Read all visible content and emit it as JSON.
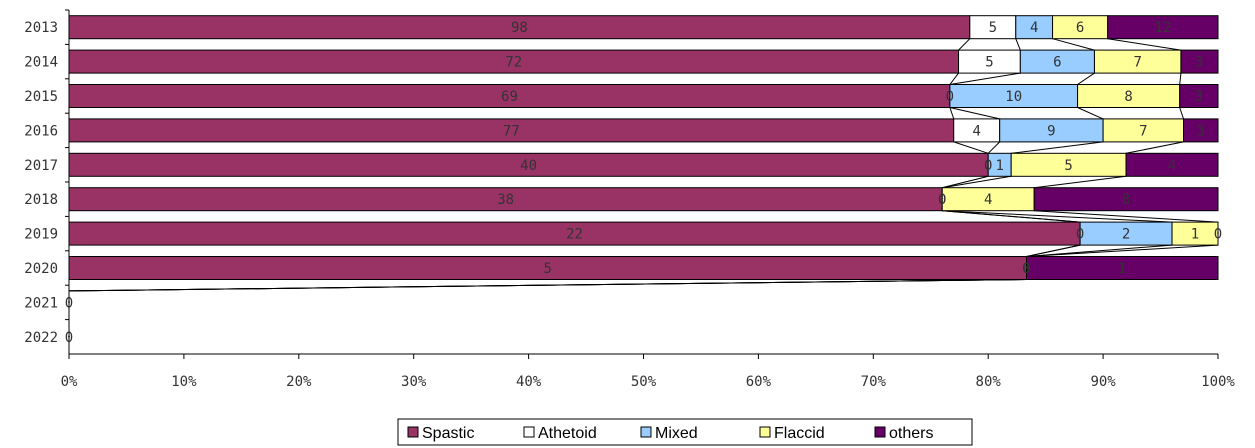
{
  "chart_data": {
    "type": "bar",
    "orientation": "horizontal",
    "stacked": "percent",
    "categories": [
      "2013",
      "2014",
      "2015",
      "2016",
      "2017",
      "2018",
      "2019",
      "2020",
      "2021",
      "2022"
    ],
    "series": [
      {
        "name": "Spastic",
        "color": "#993366",
        "values": [
          98,
          72,
          69,
          77,
          40,
          38,
          22,
          5,
          0,
          0
        ]
      },
      {
        "name": "Athetoid",
        "color": "#FFFFFF",
        "values": [
          5,
          5,
          0,
          4,
          0,
          0,
          0,
          0,
          0,
          0
        ]
      },
      {
        "name": "Mixed",
        "color": "#99CCFF",
        "values": [
          4,
          6,
          10,
          9,
          1,
          0,
          2,
          0,
          0,
          0
        ]
      },
      {
        "name": "Flaccid",
        "color": "#FFFF99",
        "values": [
          6,
          7,
          8,
          7,
          5,
          4,
          1,
          0,
          0,
          0
        ]
      },
      {
        "name": "others",
        "color": "#660066",
        "values": [
          12,
          3,
          3,
          3,
          4,
          8,
          0,
          1,
          0,
          0
        ]
      }
    ],
    "x_ticks": [
      "0%",
      "10%",
      "20%",
      "30%",
      "40%",
      "50%",
      "60%",
      "70%",
      "80%",
      "90%",
      "100%"
    ],
    "xlim": [
      0,
      100
    ],
    "connector_lines": true,
    "grid": false,
    "legend_position": "bottom"
  }
}
